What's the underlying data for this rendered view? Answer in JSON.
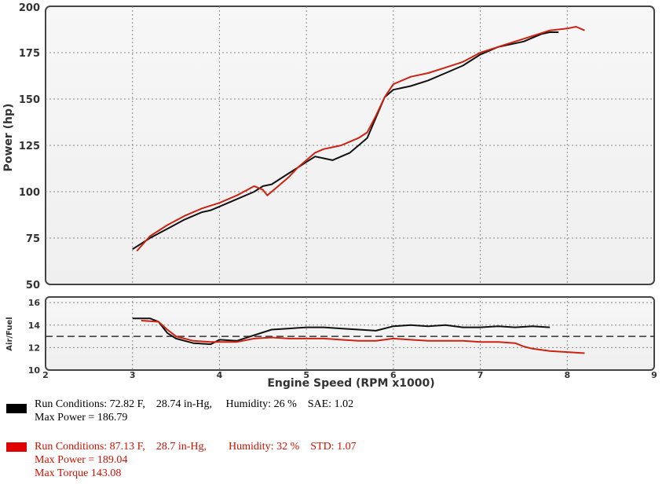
{
  "chart_data": [
    {
      "type": "line",
      "xlabel": "",
      "ylabel": "Power (hp)",
      "xlim": [
        2,
        9
      ],
      "ylim": [
        50,
        200
      ],
      "xticks": [
        2,
        3,
        4,
        5,
        6,
        7,
        8,
        9
      ],
      "yticks": [
        50,
        75,
        100,
        125,
        150,
        175,
        200
      ],
      "grid": true,
      "series": [
        {
          "name": "",
          "color": "#111111",
          "x": [
            3.0,
            3.2,
            3.4,
            3.6,
            3.8,
            3.9,
            4.0,
            4.2,
            4.4,
            4.5,
            4.6,
            4.7,
            4.8,
            4.9,
            5.0,
            5.1,
            5.2,
            5.3,
            5.4,
            5.5,
            5.6,
            5.7,
            5.8,
            5.9,
            6.0,
            6.2,
            6.4,
            6.6,
            6.8,
            7.0,
            7.2,
            7.4,
            7.5,
            7.6,
            7.7,
            7.8,
            7.9
          ],
          "y": [
            69,
            75,
            80,
            85,
            89,
            90,
            92,
            96,
            100,
            103,
            104,
            107,
            110,
            113,
            116,
            119,
            118,
            117,
            119,
            121,
            125,
            129,
            140,
            151,
            155,
            157,
            160,
            164,
            168,
            174,
            178,
            180,
            181,
            183,
            185,
            186,
            186
          ]
        },
        {
          "name": "",
          "color": "#cc2211",
          "x": [
            3.05,
            3.2,
            3.4,
            3.6,
            3.8,
            4.0,
            4.2,
            4.4,
            4.5,
            4.55,
            4.6,
            4.7,
            4.8,
            4.9,
            5.0,
            5.1,
            5.2,
            5.3,
            5.4,
            5.5,
            5.6,
            5.7,
            5.8,
            5.9,
            6.0,
            6.2,
            6.4,
            6.6,
            6.8,
            7.0,
            7.2,
            7.4,
            7.6,
            7.8,
            8.0,
            8.1,
            8.2
          ],
          "y": [
            68,
            76,
            82,
            87,
            91,
            94,
            98,
            103,
            101,
            98,
            100,
            104,
            108,
            113,
            117,
            121,
            123,
            124,
            125,
            127,
            129,
            132,
            141,
            151,
            158,
            162,
            164,
            167,
            170,
            175,
            178,
            181,
            184,
            187,
            188,
            189,
            187
          ]
        }
      ]
    },
    {
      "type": "line",
      "xlabel": "Engine Speed (RPM x1000)",
      "ylabel": "Air/Fuel",
      "xlim": [
        2,
        9
      ],
      "ylim": [
        10,
        16.5
      ],
      "xticks": [
        2,
        3,
        4,
        5,
        6,
        7,
        8,
        9
      ],
      "yticks": [
        10,
        12,
        14,
        16
      ],
      "grid": true,
      "reference_line": 13,
      "series": [
        {
          "name": "",
          "color": "#111111",
          "x": [
            3.0,
            3.2,
            3.3,
            3.4,
            3.5,
            3.7,
            3.9,
            4.0,
            4.2,
            4.4,
            4.6,
            4.8,
            5.0,
            5.2,
            5.4,
            5.6,
            5.8,
            6.0,
            6.2,
            6.4,
            6.6,
            6.8,
            7.0,
            7.2,
            7.4,
            7.6,
            7.8
          ],
          "y": [
            14.6,
            14.6,
            14.3,
            13.3,
            12.8,
            12.4,
            12.3,
            12.7,
            12.6,
            13.1,
            13.6,
            13.7,
            13.8,
            13.8,
            13.7,
            13.6,
            13.5,
            13.9,
            14.0,
            13.9,
            14.0,
            13.8,
            13.8,
            13.9,
            13.8,
            13.9,
            13.8
          ]
        },
        {
          "name": "",
          "color": "#cc2211",
          "x": [
            3.1,
            3.3,
            3.4,
            3.5,
            3.7,
            3.9,
            4.0,
            4.2,
            4.4,
            4.6,
            4.8,
            5.0,
            5.2,
            5.4,
            5.6,
            5.8,
            6.0,
            6.2,
            6.4,
            6.6,
            6.8,
            7.0,
            7.2,
            7.4,
            7.5,
            7.6,
            7.8,
            8.0,
            8.2
          ],
          "y": [
            14.4,
            14.3,
            13.6,
            13.0,
            12.6,
            12.5,
            12.5,
            12.5,
            12.8,
            12.9,
            12.8,
            12.8,
            12.8,
            12.7,
            12.6,
            12.6,
            12.8,
            12.7,
            12.6,
            12.6,
            12.6,
            12.5,
            12.5,
            12.4,
            12.1,
            11.9,
            11.7,
            11.6,
            11.5
          ]
        }
      ]
    }
  ],
  "legend": [
    {
      "swatch_color": "#000000",
      "lines": [
        "Run Conditions: 72.82 F,    28.74 in-Hg,     Humidity: 26 %    SAE: 1.02",
        "Max Power = 186.79"
      ]
    },
    {
      "swatch_color": "#e00000",
      "text_color": "#cc1100",
      "lines": [
        "Run Conditions: 87.13 F,    28.7 in-Hg,        Humidity: 32 %    STD: 1.07",
        "Max Power = 189.04",
        "Max Torque 143.08"
      ]
    }
  ]
}
